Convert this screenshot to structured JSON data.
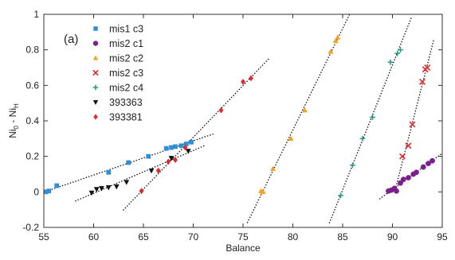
{
  "chart_data": {
    "type": "scatter",
    "panel_label": "(a)",
    "xlabel": "Balance",
    "ylabel": "Ni₀ - Ni_H",
    "ylabel_main": "Ni",
    "ylabel_sub1": "0",
    "ylabel_mid": " - Ni",
    "ylabel_sub2": "H",
    "xlim": [
      55,
      95
    ],
    "ylim": [
      -0.2,
      1
    ],
    "xticks": [
      55,
      60,
      65,
      70,
      75,
      80,
      85,
      90,
      95
    ],
    "yticks": [
      -0.2,
      0,
      0.2,
      0.4,
      0.6,
      0.8,
      1
    ],
    "ytick_labels": [
      "-0.2",
      "0",
      "0.2",
      "0.4",
      "0.6",
      "0.8",
      "1"
    ],
    "legend_position": "top-left",
    "series": [
      {
        "name": "mis1 c3",
        "color": "#2e8ed6",
        "marker": "square",
        "points": [
          [
            55.2,
            0.0
          ],
          [
            55.5,
            0.005
          ],
          [
            56.3,
            0.035
          ],
          [
            61.5,
            0.11
          ],
          [
            63.5,
            0.165
          ],
          [
            65.5,
            0.2
          ],
          [
            67.3,
            0.245
          ],
          [
            67.8,
            0.25
          ],
          [
            68.2,
            0.255
          ],
          [
            68.8,
            0.26
          ],
          [
            69.3,
            0.27
          ],
          [
            69.8,
            0.28
          ]
        ]
      },
      {
        "name": "mis2 c1",
        "color": "#7b1f8f",
        "marker": "circle",
        "points": [
          [
            89.6,
            0.005
          ],
          [
            89.9,
            0.01
          ],
          [
            90.2,
            0.02
          ],
          [
            90.4,
            0.005
          ],
          [
            90.8,
            0.05
          ],
          [
            91.1,
            0.07
          ],
          [
            91.6,
            0.08
          ],
          [
            92.1,
            0.1
          ],
          [
            92.4,
            0.11
          ],
          [
            93.1,
            0.14
          ],
          [
            93.6,
            0.16
          ],
          [
            94.0,
            0.175
          ]
        ]
      },
      {
        "name": "mis2 c2",
        "color": "#f5a21f",
        "marker": "triangle",
        "points": [
          [
            76.8,
            0.005
          ],
          [
            77.0,
            0.0
          ],
          [
            78.0,
            0.13
          ],
          [
            79.8,
            0.3
          ],
          [
            81.2,
            0.46
          ],
          [
            83.8,
            0.79
          ],
          [
            84.3,
            0.85
          ],
          [
            84.5,
            0.87
          ]
        ]
      },
      {
        "name": "mis2 c3",
        "color": "#e0282a",
        "marker": "x",
        "points": [
          [
            91.0,
            0.2
          ],
          [
            91.6,
            0.26
          ],
          [
            92.0,
            0.38
          ],
          [
            93.0,
            0.62
          ],
          [
            93.3,
            0.69
          ],
          [
            93.5,
            0.7
          ]
        ]
      },
      {
        "name": "mis2 c4",
        "color": "#2b9e8a",
        "marker": "plus",
        "points": [
          [
            84.8,
            -0.02
          ],
          [
            86.0,
            0.15
          ],
          [
            87.0,
            0.3
          ],
          [
            88.0,
            0.42
          ],
          [
            89.8,
            0.73
          ],
          [
            90.5,
            0.78
          ],
          [
            90.8,
            0.8
          ]
        ]
      },
      {
        "name": "393363",
        "color": "#111111",
        "marker": "triangle-down",
        "points": [
          [
            59.8,
            -0.005
          ],
          [
            60.3,
            0.015
          ],
          [
            60.8,
            0.02
          ],
          [
            61.5,
            0.025
          ],
          [
            62.3,
            0.03
          ],
          [
            63.3,
            0.055
          ],
          [
            65.8,
            0.12
          ],
          [
            67.8,
            0.19
          ],
          [
            69.5,
            0.23
          ]
        ]
      },
      {
        "name": "393381",
        "color": "#e0282a",
        "marker": "diamond",
        "points": [
          [
            64.8,
            0.005
          ],
          [
            66.5,
            0.12
          ],
          [
            67.5,
            0.17
          ],
          [
            68.2,
            0.18
          ],
          [
            69.2,
            0.25
          ],
          [
            72.8,
            0.46
          ],
          [
            75.0,
            0.62
          ],
          [
            75.8,
            0.64
          ]
        ]
      }
    ]
  }
}
